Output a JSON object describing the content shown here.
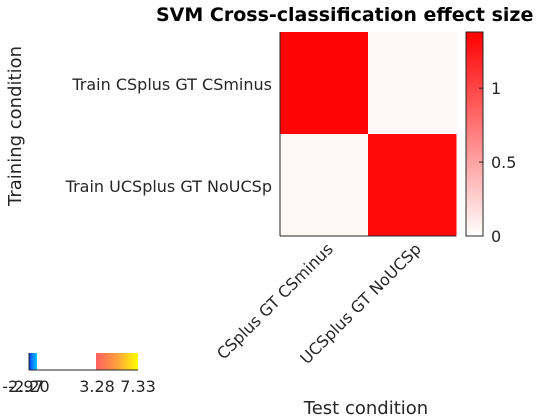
{
  "chart_data": [
    {
      "type": "heatmap",
      "title": "SVM Cross-classification effect size",
      "xlabel": "Test condition",
      "ylabel": "Training condition",
      "x_categories": [
        "CSplus GT CSminus",
        "UCSplus GT NoUCSp"
      ],
      "y_categories": [
        "Train CSplus GT CSminus",
        "Train UCSplus GT NoUCSp"
      ],
      "values": [
        [
          1.36,
          0.05
        ],
        [
          0.05,
          1.33
        ]
      ],
      "colorbar": {
        "range": [
          0,
          1.38
        ],
        "ticks": [
          "0",
          "0.5",
          "1"
        ],
        "tick_values": [
          0,
          0.5,
          1
        ],
        "colors": [
          "#ffffff",
          "#ff0000"
        ]
      }
    },
    {
      "type": "heatmap",
      "title": "",
      "note": "small split colorbar legend (cold / hot)",
      "ticks": [
        "-2.97",
        "-2.20",
        "3.28",
        "7.33"
      ],
      "colors": {
        "cold": [
          "#0040ff",
          "#00c8ff"
        ],
        "hot": [
          "#ff6060",
          "#ffa040",
          "#ffff00"
        ]
      }
    }
  ]
}
